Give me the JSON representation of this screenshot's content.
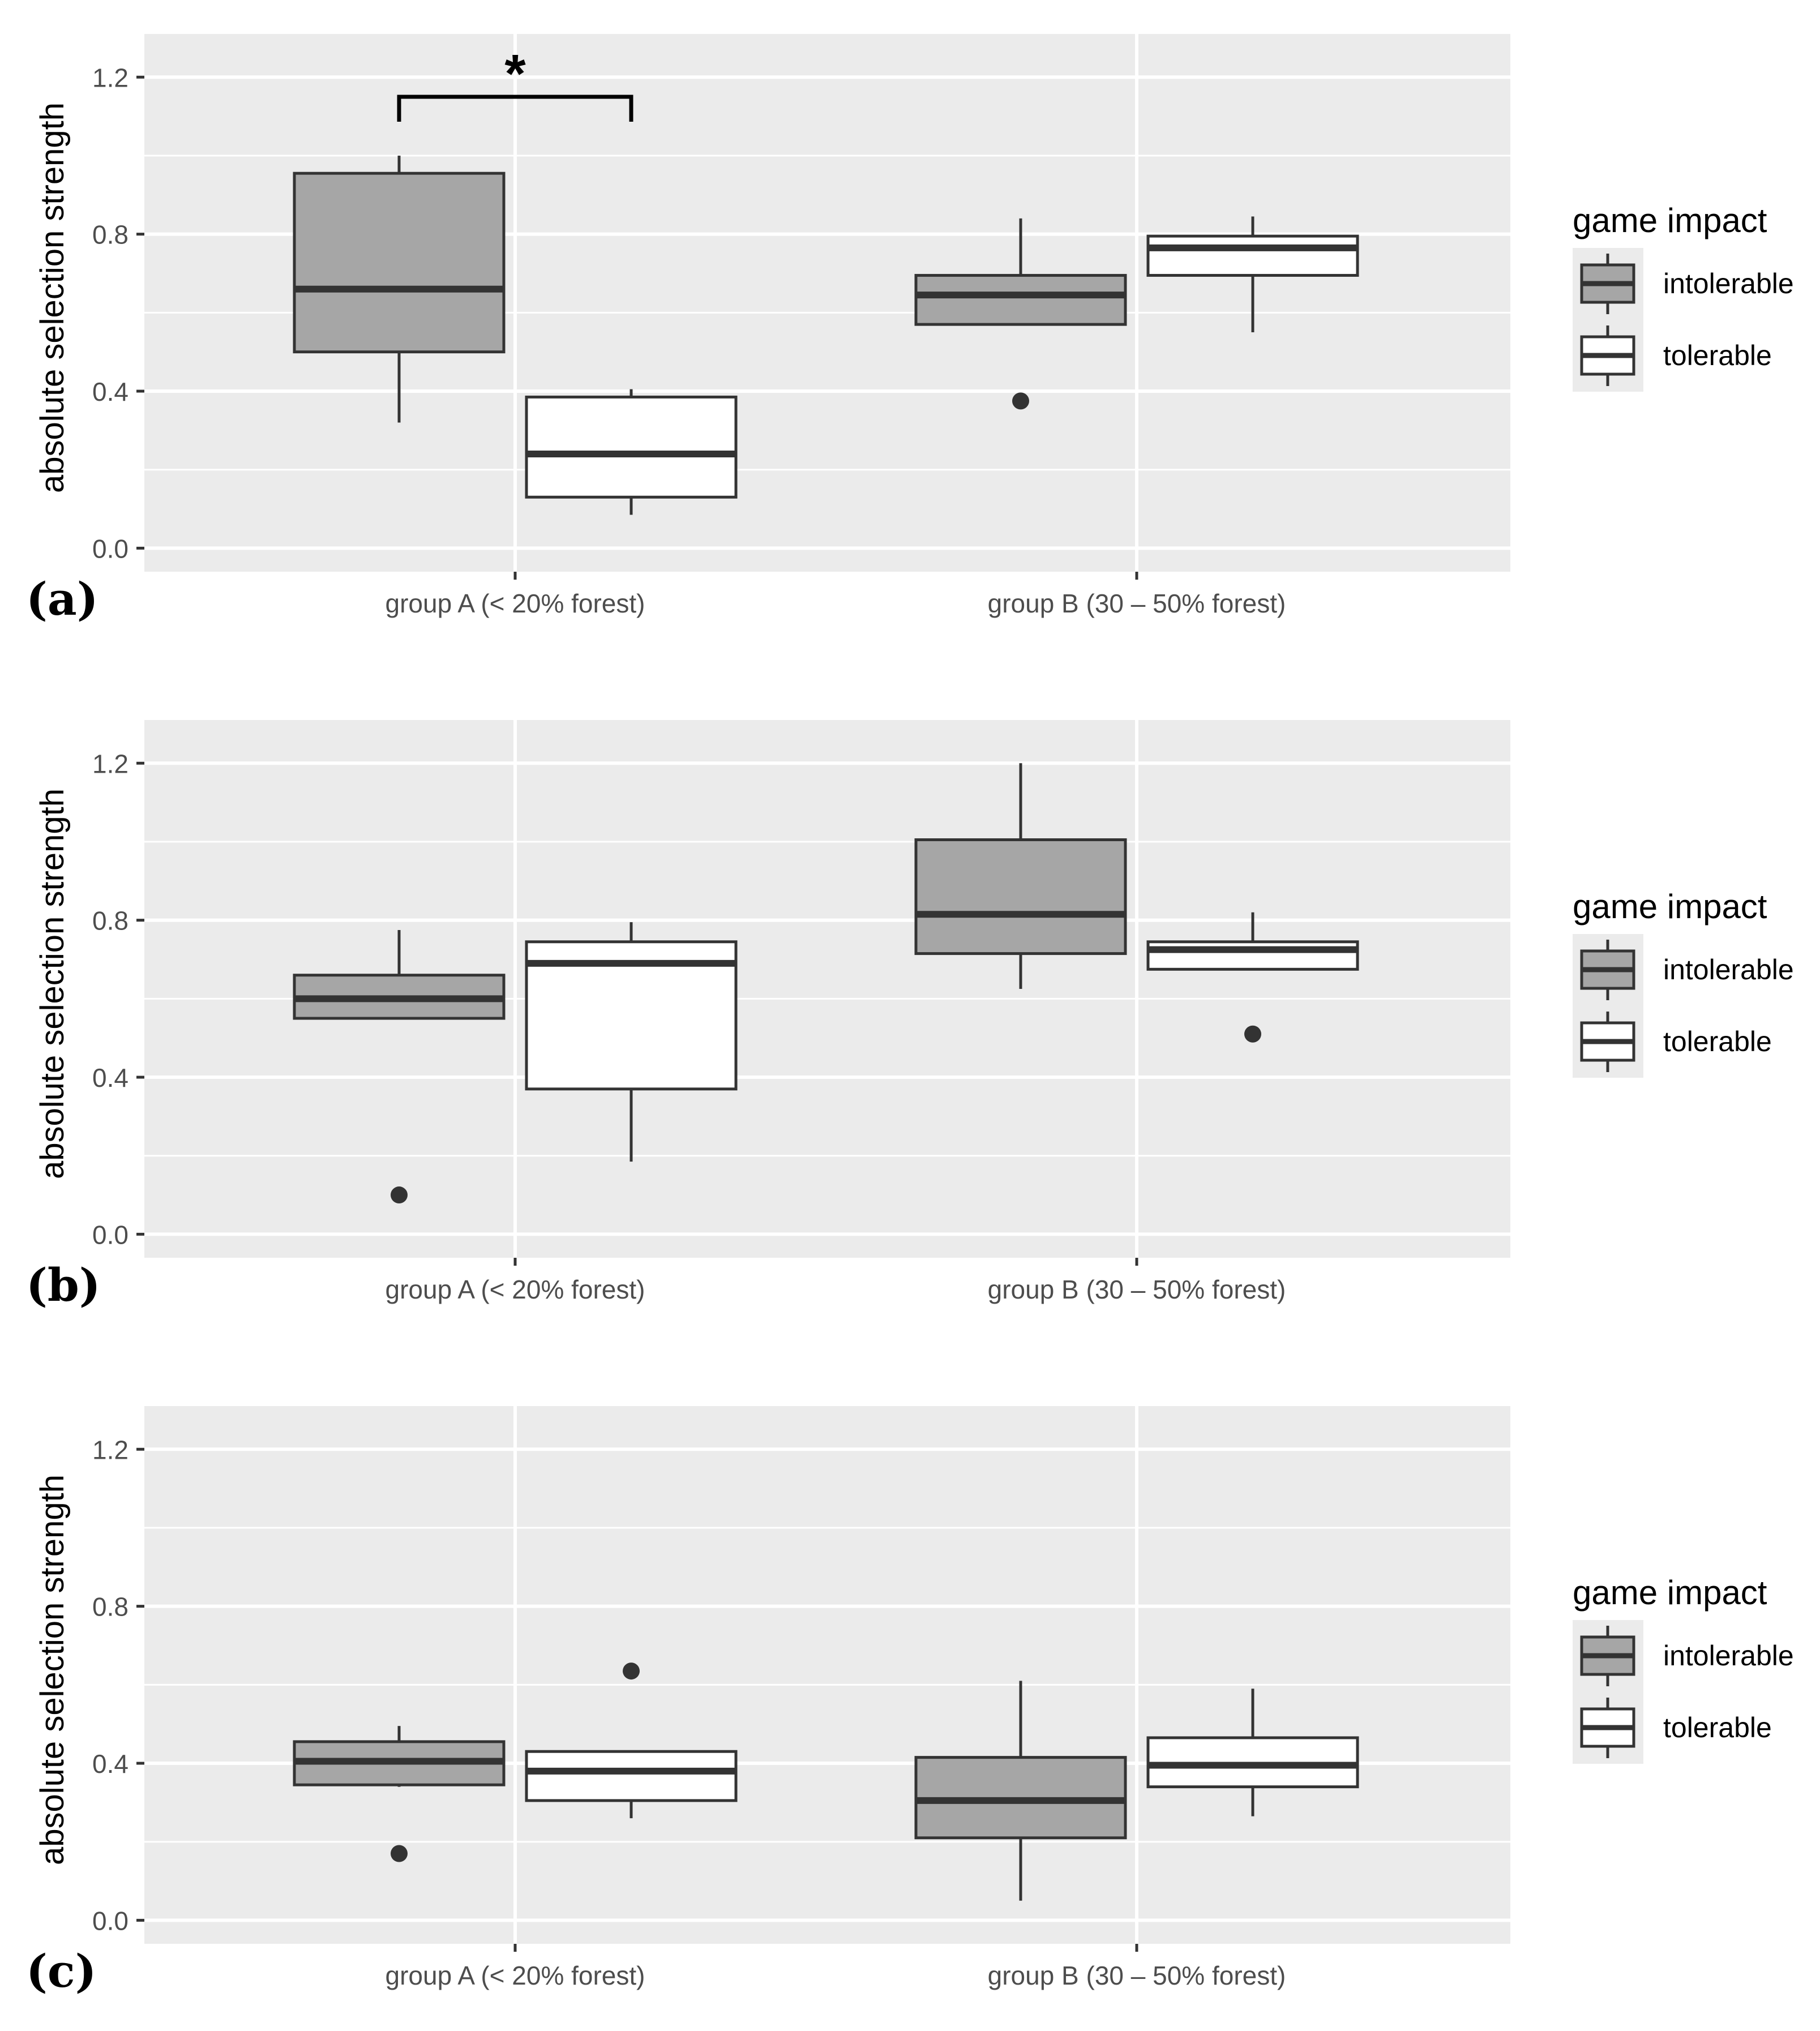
{
  "chart_data": [
    {
      "type": "boxplot",
      "panel_label": "(a)",
      "ylabel": "absolute selection strength",
      "ylim": [
        -0.06,
        1.31
      ],
      "yticks": [
        "0.0",
        "0.4",
        "0.8",
        "1.2"
      ],
      "categories": [
        "group A (< 20% forest)",
        "group B (30 – 50% forest)"
      ],
      "legend": {
        "title": "game impact",
        "entries": [
          "intolerable",
          "tolerable"
        ],
        "position": "right"
      },
      "significance": {
        "label": "*",
        "category": 0,
        "y": 1.15
      },
      "series": [
        {
          "name": "intolerable",
          "fill": "#a6a6a6",
          "boxes": [
            {
              "lower": 0.32,
              "q1": 0.5,
              "median": 0.66,
              "q3": 0.955,
              "upper": 1.0,
              "outliers": []
            },
            {
              "lower": 0.57,
              "q1": 0.57,
              "median": 0.645,
              "q3": 0.695,
              "upper": 0.84,
              "outliers": [
                0.375
              ]
            }
          ]
        },
        {
          "name": "tolerable",
          "fill": "#ffffff",
          "boxes": [
            {
              "lower": 0.085,
              "q1": 0.13,
              "median": 0.24,
              "q3": 0.385,
              "upper": 0.405,
              "outliers": []
            },
            {
              "lower": 0.55,
              "q1": 0.695,
              "median": 0.765,
              "q3": 0.795,
              "upper": 0.845,
              "outliers": []
            }
          ]
        }
      ]
    },
    {
      "type": "boxplot",
      "panel_label": "(b)",
      "ylabel": "absolute selection strength",
      "ylim": [
        -0.06,
        1.31
      ],
      "yticks": [
        "0.0",
        "0.4",
        "0.8",
        "1.2"
      ],
      "categories": [
        "group A (< 20% forest)",
        "group B (30 – 50% forest)"
      ],
      "legend": {
        "title": "game impact",
        "entries": [
          "intolerable",
          "tolerable"
        ],
        "position": "right"
      },
      "series": [
        {
          "name": "intolerable",
          "fill": "#a6a6a6",
          "boxes": [
            {
              "lower": 0.55,
              "q1": 0.55,
              "median": 0.6,
              "q3": 0.66,
              "upper": 0.775,
              "outliers": [
                0.1
              ]
            },
            {
              "lower": 0.625,
              "q1": 0.715,
              "median": 0.815,
              "q3": 1.005,
              "upper": 1.2,
              "outliers": []
            }
          ]
        },
        {
          "name": "tolerable",
          "fill": "#ffffff",
          "boxes": [
            {
              "lower": 0.185,
              "q1": 0.37,
              "median": 0.69,
              "q3": 0.745,
              "upper": 0.795,
              "outliers": []
            },
            {
              "lower": 0.675,
              "q1": 0.675,
              "median": 0.725,
              "q3": 0.745,
              "upper": 0.82,
              "outliers": [
                0.51
              ]
            }
          ]
        }
      ]
    },
    {
      "type": "boxplot",
      "panel_label": "(c)",
      "ylabel": "absolute selection strength",
      "ylim": [
        -0.06,
        1.31
      ],
      "yticks": [
        "0.0",
        "0.4",
        "0.8",
        "1.2"
      ],
      "categories": [
        "group A (< 20% forest)",
        "group B (30 – 50% forest)"
      ],
      "legend": {
        "title": "game impact",
        "entries": [
          "intolerable",
          "tolerable"
        ],
        "position": "right"
      },
      "series": [
        {
          "name": "intolerable",
          "fill": "#a6a6a6",
          "boxes": [
            {
              "lower": 0.34,
              "q1": 0.345,
              "median": 0.405,
              "q3": 0.455,
              "upper": 0.495,
              "outliers": [
                0.17
              ]
            },
            {
              "lower": 0.05,
              "q1": 0.21,
              "median": 0.305,
              "q3": 0.415,
              "upper": 0.61,
              "outliers": []
            }
          ]
        },
        {
          "name": "tolerable",
          "fill": "#ffffff",
          "boxes": [
            {
              "lower": 0.26,
              "q1": 0.305,
              "median": 0.38,
              "q3": 0.43,
              "upper": 0.43,
              "outliers": [
                0.635
              ]
            },
            {
              "lower": 0.265,
              "q1": 0.34,
              "median": 0.395,
              "q3": 0.465,
              "upper": 0.59,
              "outliers": []
            }
          ]
        }
      ]
    }
  ]
}
